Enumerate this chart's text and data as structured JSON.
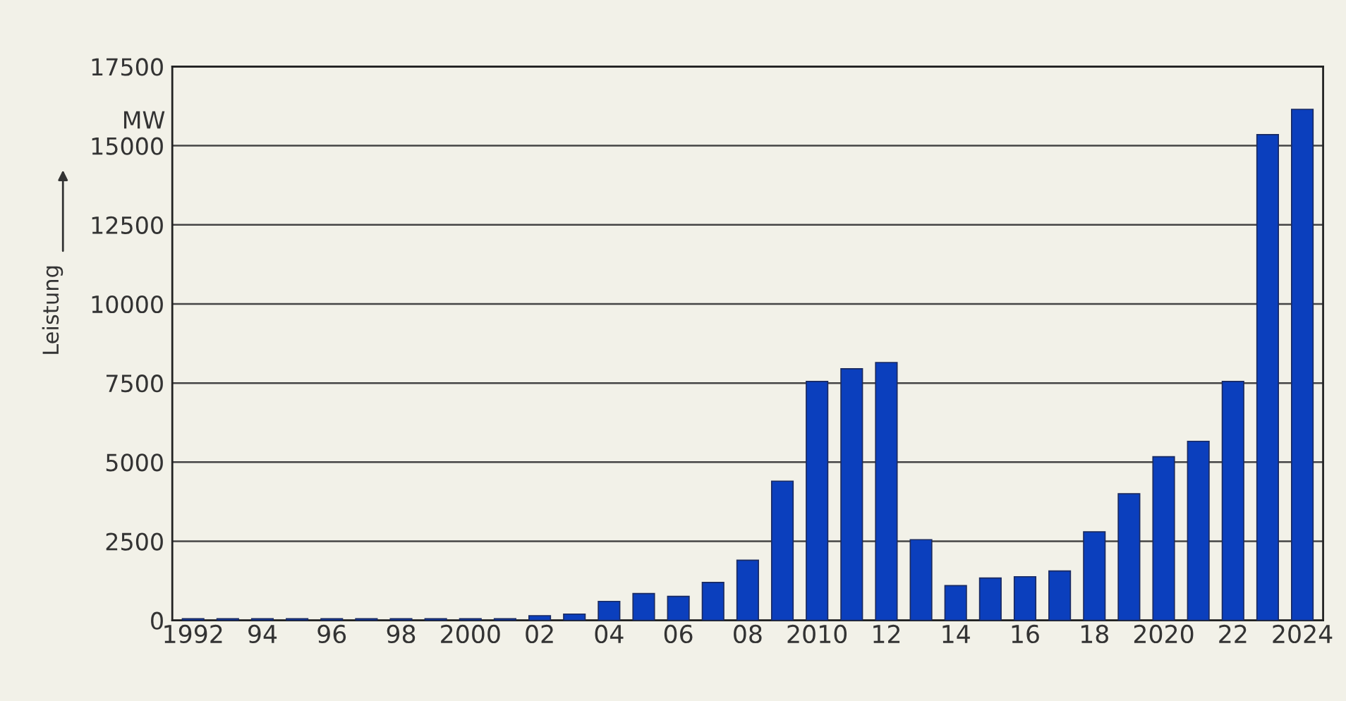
{
  "chart_data": {
    "type": "bar",
    "ylabel": "Leistung",
    "annotations": [
      "MW"
    ],
    "categories": [
      "1992",
      null,
      "94",
      null,
      "96",
      null,
      "98",
      null,
      "2000",
      null,
      "02",
      null,
      "04",
      null,
      "06",
      null,
      "08",
      null,
      "2010",
      null,
      "12",
      null,
      "14",
      null,
      "16",
      null,
      "18",
      null,
      "2020",
      null,
      "22",
      null,
      "2024"
    ],
    "series": [
      {
        "color": "#0b3fbd",
        "values": [
          50,
          50,
          50,
          50,
          50,
          50,
          50,
          50,
          50,
          50,
          150,
          200,
          600,
          850,
          760,
          1200,
          1900,
          4400,
          7550,
          7950,
          8150,
          2550,
          1100,
          1340,
          1380,
          1560,
          2800,
          4000,
          5170,
          5660,
          7550,
          15350,
          16150
        ]
      }
    ],
    "ylim": [
      0,
      17500
    ],
    "yticks": [
      0,
      2500,
      5000,
      7500,
      10000,
      12500,
      15000,
      17500
    ],
    "grid": "y",
    "legend": false
  }
}
